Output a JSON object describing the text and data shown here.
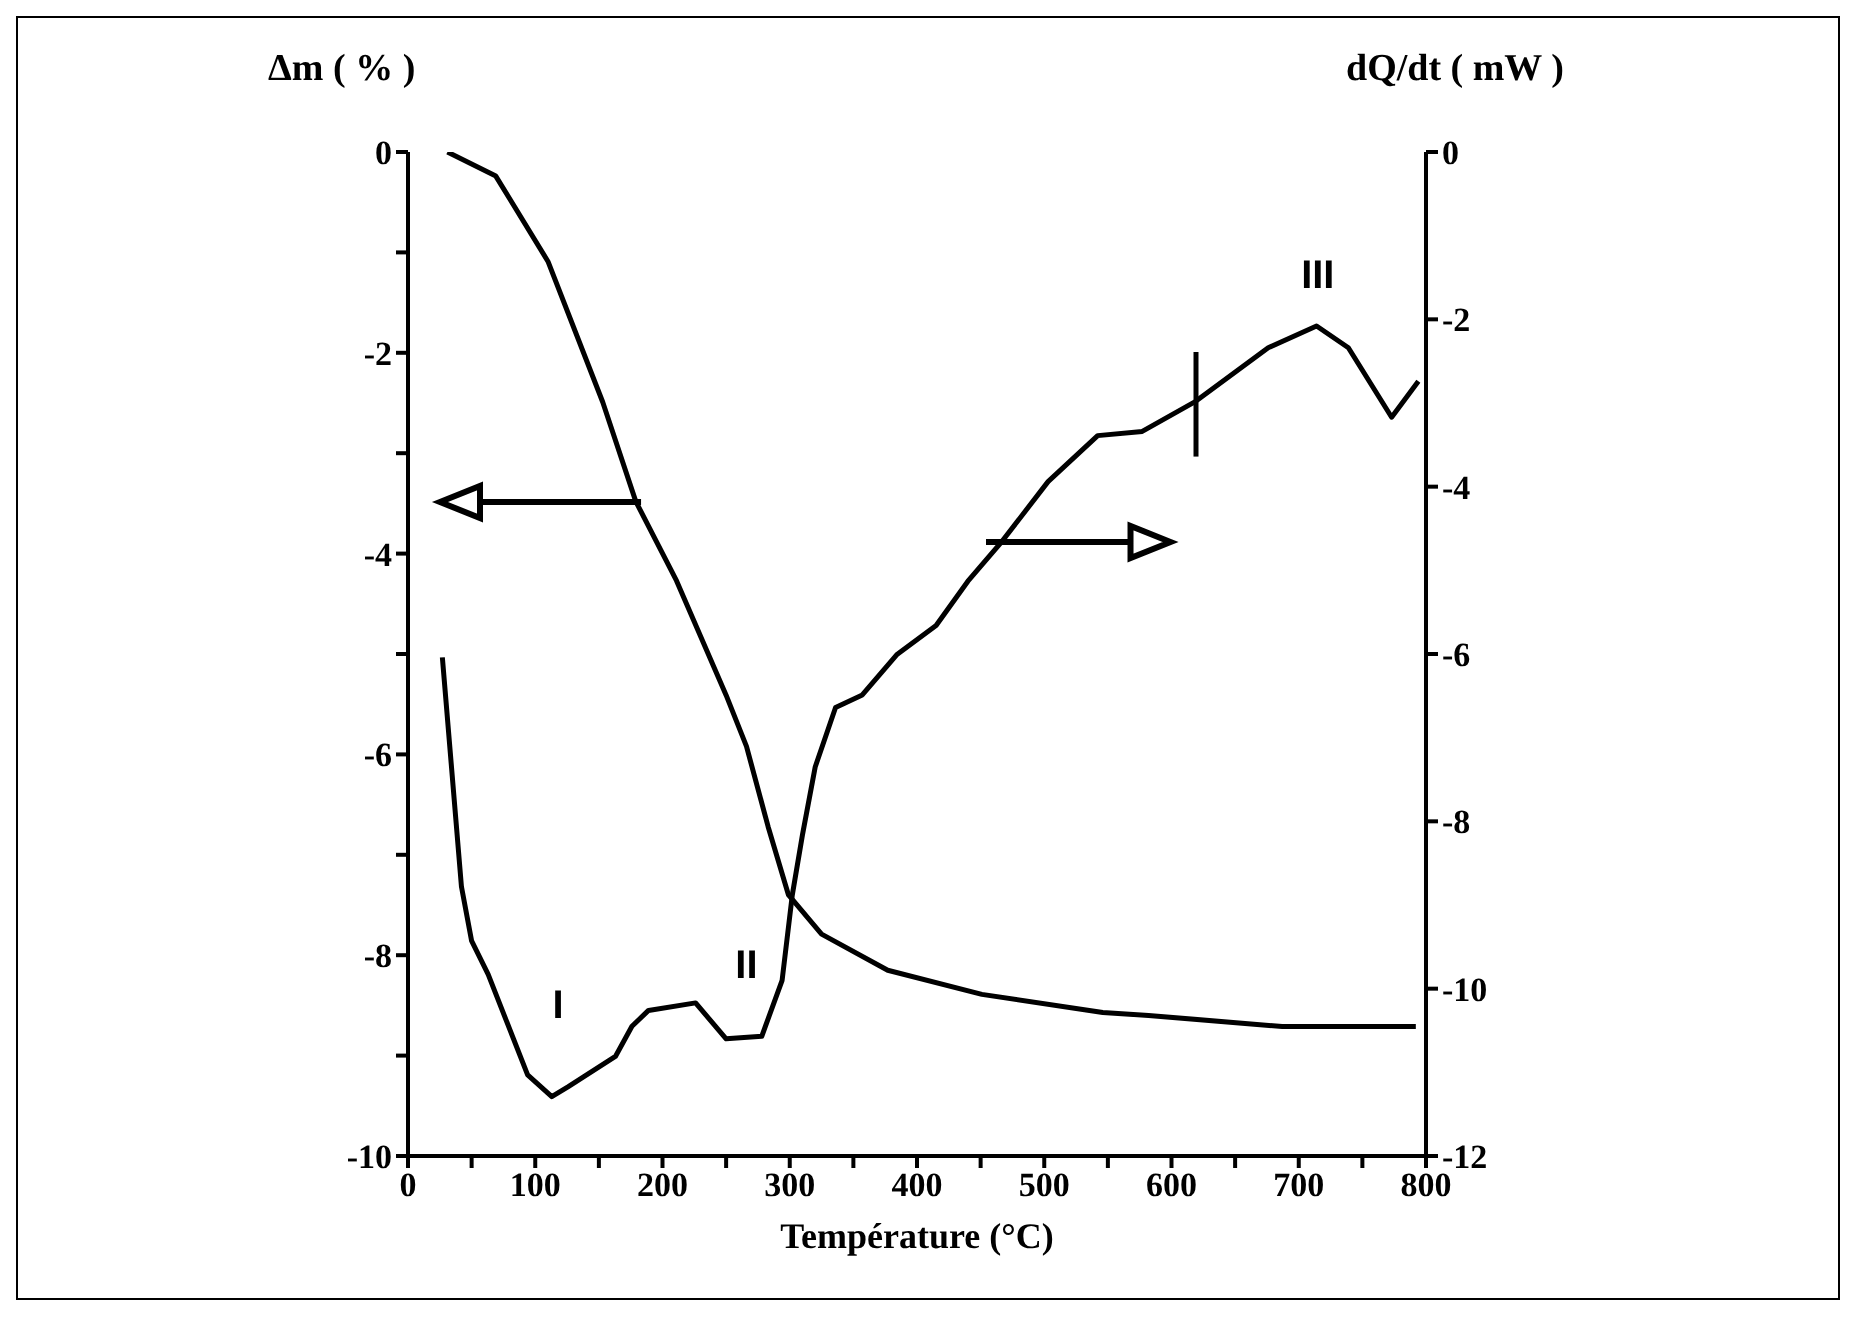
{
  "chart_data": {
    "type": "line",
    "xlabel": "Température (°C)",
    "ylabel": "Δm ( % )",
    "y2label": "dQ/dt ( mW )",
    "xlim": [
      0,
      800
    ],
    "xticks": [
      0,
      {
        "value": 50,
        "label": null
      },
      100,
      {
        "value": 150,
        "label": null
      },
      200,
      {
        "value": 250,
        "label": null
      },
      300,
      {
        "value": 350,
        "label": null
      },
      400,
      {
        "value": 450,
        "label": null
      },
      500,
      {
        "value": 550,
        "label": null
      },
      600,
      {
        "value": 650,
        "label": null
      },
      700,
      {
        "value": 750,
        "label": null
      },
      800
    ],
    "ylim": [
      -10,
      0
    ],
    "yticks": [
      -10,
      {
        "value": -9,
        "label": null
      },
      -8,
      {
        "value": -7,
        "label": null
      },
      -6,
      {
        "value": -5,
        "label": null
      },
      -4,
      {
        "value": -3,
        "label": null
      },
      -2,
      {
        "value": -1,
        "label": null
      },
      0
    ],
    "y2lim": [
      -12,
      0
    ],
    "y2ticks": [
      -12,
      -10,
      -8,
      -6,
      -4,
      -2,
      0
    ],
    "series": [
      {
        "color": "#000000",
        "x": [
          31,
          69,
          110,
          153,
          179,
          211,
          250,
          266,
          283,
          299,
          325,
          377,
          451,
          546,
          582,
          687,
          792
        ],
        "values": [
          0,
          -0.24,
          -1.09,
          -2.49,
          -3.48,
          -4.27,
          -5.41,
          -5.92,
          -6.72,
          -7.4,
          -7.79,
          -8.15,
          -8.39,
          -8.57,
          -8.6,
          -8.71,
          -8.71
        ]
      },
      {
        "color": "#000000",
        "axis": "y2",
        "x": [
          27,
          42,
          50,
          63,
          94,
          113,
          126,
          163,
          176,
          189,
          226,
          250,
          278,
          294,
          302,
          310,
          320,
          336,
          357,
          384,
          415,
          440,
          467,
          503,
          542,
          577,
          619,
          676,
          714,
          739,
          773,
          794
        ],
        "values": [
          -6.04,
          -8.78,
          -9.43,
          -9.83,
          -11.03,
          -11.29,
          -11.17,
          -10.81,
          -10.45,
          -10.26,
          -10.17,
          -10.6,
          -10.57,
          -9.9,
          -8.88,
          -8.16,
          -7.35,
          -6.64,
          -6.49,
          -6.01,
          -5.66,
          -5.13,
          -4.65,
          -3.94,
          -3.39,
          -3.34,
          -2.98,
          -2.34,
          -2.08,
          -2.34,
          -3.17,
          -2.74
        ]
      }
    ],
    "annotations": [
      "I",
      "II",
      "III"
    ],
    "marker": "none",
    "line_style": "solid",
    "grid": false
  }
}
